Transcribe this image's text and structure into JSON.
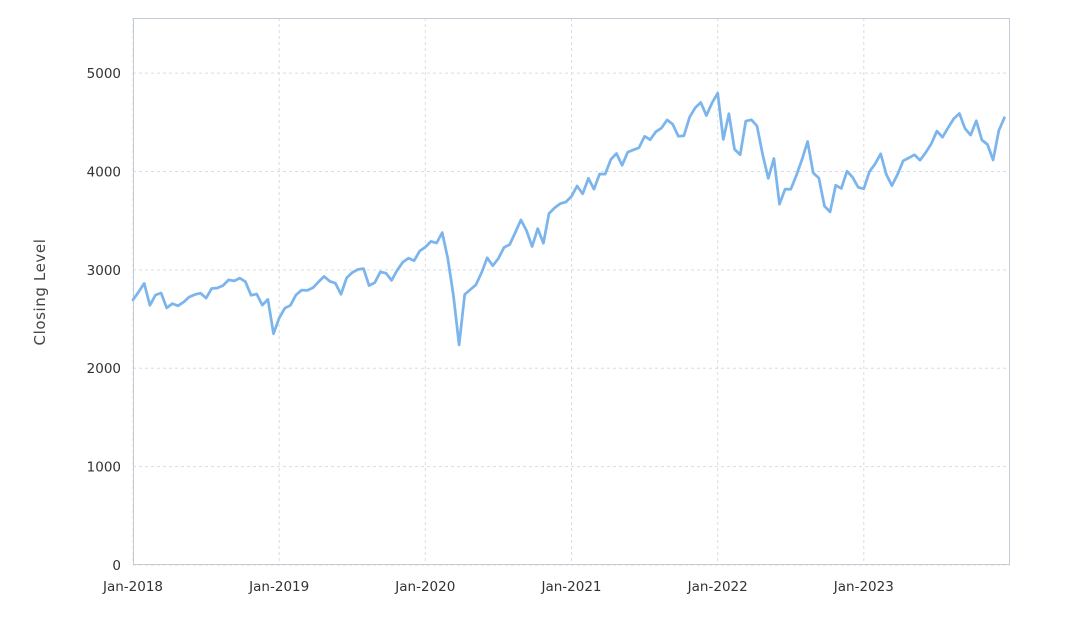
{
  "page": {
    "background": "#ffffff"
  },
  "chart_data": {
    "type": "line",
    "title": "",
    "xlabel": "",
    "ylabel": "Closing Level",
    "x_unit": "decimal-year",
    "x_domain": [
      2018.0,
      2024.0
    ],
    "ylim": [
      0,
      5560
    ],
    "y_ticks": [
      0,
      1000,
      2000,
      3000,
      4000,
      5000
    ],
    "x_ticks": [
      {
        "x": 2018,
        "label": "Jan-2018"
      },
      {
        "x": 2019,
        "label": "Jan-2019"
      },
      {
        "x": 2020,
        "label": "Jan-2020"
      },
      {
        "x": 2021,
        "label": "Jan-2021"
      },
      {
        "x": 2022,
        "label": "Jan-2022"
      },
      {
        "x": 2023,
        "label": "Jan-2023"
      }
    ],
    "grid": true,
    "legend": false,
    "x_start": 2018.0,
    "x_step": 0.0384615385,
    "values": [
      2696,
      2776,
      2862,
      2640,
      2744,
      2765,
      2613,
      2657,
      2635,
      2672,
      2724,
      2748,
      2763,
      2713,
      2810,
      2816,
      2840,
      2898,
      2888,
      2916,
      2880,
      2741,
      2755,
      2642,
      2700,
      2351,
      2510,
      2610,
      2640,
      2745,
      2794,
      2791,
      2818,
      2878,
      2933,
      2884,
      2864,
      2752,
      2918,
      2973,
      3004,
      3013,
      2840,
      2869,
      2979,
      2966,
      2893,
      2996,
      3078,
      3120,
      3093,
      3192,
      3231,
      3289,
      3273,
      3379,
      3116,
      2741,
      2237,
      2750,
      2799,
      2848,
      2972,
      3123,
      3042,
      3116,
      3227,
      3258,
      3380,
      3508,
      3399,
      3237,
      3419,
      3271,
      3573,
      3630,
      3673,
      3690,
      3748,
      3852,
      3773,
      3931,
      3820,
      3974,
      3973,
      4124,
      4183,
      4063,
      4196,
      4219,
      4242,
      4358,
      4323,
      4403,
      4441,
      4524,
      4481,
      4359,
      4364,
      4552,
      4647,
      4701,
      4568,
      4697,
      4796,
      4326,
      4587,
      4226,
      4171,
      4512,
      4525,
      4462,
      4175,
      3930,
      4132,
      3667,
      3821,
      3819,
      3961,
      4122,
      4305,
      3986,
      3933,
      3647,
      3589,
      3859,
      3828,
      4003,
      3941,
      3839,
      3824,
      3999,
      4077,
      4180,
      3970,
      3856,
      3971,
      4109,
      4138,
      4169,
      4115,
      4192,
      4282,
      4410,
      4348,
      4446,
      4537,
      4589,
      4437,
      4370,
      4515,
      4320,
      4274,
      4117,
      4415,
      4547
    ]
  },
  "style": {
    "line_color": "#7cb5ec",
    "grid_color": "#d9dde1",
    "border_color": "#c3ccd6",
    "tick_label_color": "#333333",
    "axis_title_color": "#444444",
    "background": "#ffffff"
  }
}
